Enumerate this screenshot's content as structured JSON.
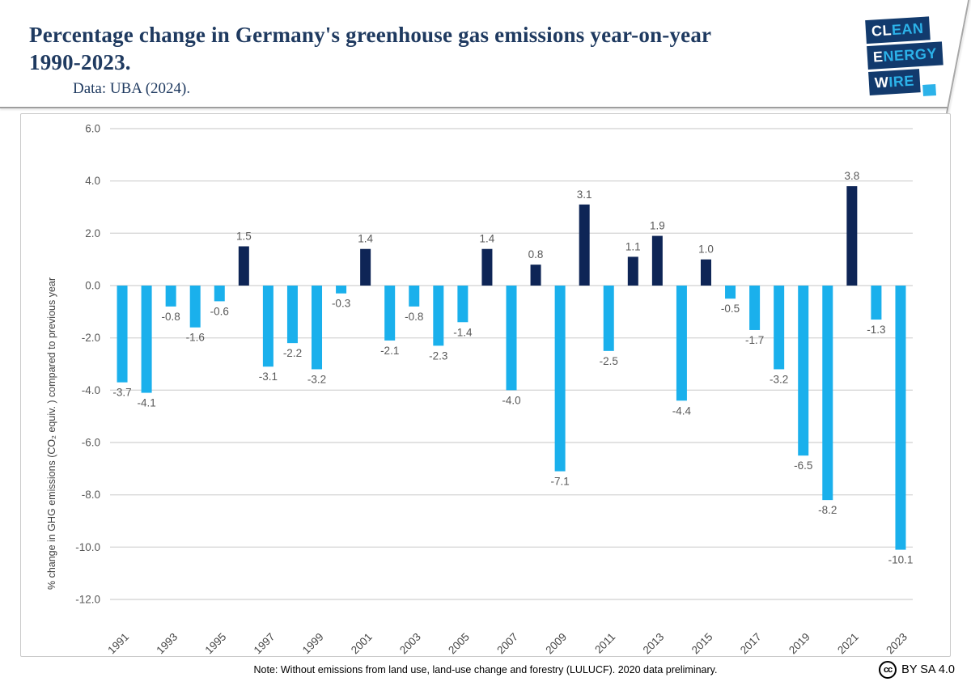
{
  "header": {
    "title_line1": "Percentage change in Germany's greenhouse gas emissions year-on-year",
    "title_line2": "1990-2023.",
    "subtitle": "Data: UBA (2024).",
    "logo": {
      "row1_white": "CL",
      "row1_blue": "EAN",
      "row2_white": "E",
      "row2_blue": "NERGY",
      "row3_white": "W",
      "row3_blue": "IRE"
    }
  },
  "footer": {
    "note": "Note: Without emissions from land use, land-use change and forestry (LULUCF). 2020 data preliminary.",
    "cc_icon": "cc",
    "license": "BY SA 4.0"
  },
  "colors": {
    "title_navy": "#1f3a60",
    "logo_box": "#123a6d",
    "logo_cyan": "#2cb2e9",
    "bar_positive": "#0e2556",
    "bar_negative": "#1ab0ec",
    "gridline": "#d9d9d9",
    "tick_label": "#595959",
    "value_label": "#595959",
    "axis_title": "#3f3f3f"
  },
  "chart_data": {
    "type": "bar",
    "title": "Percentage change in Germany's greenhouse gas emissions year-on-year 1990-2023.",
    "xlabel": "",
    "ylabel": "% change in GHG emissions (CO₂ equiv. ) compared to previous year",
    "x": [
      1991,
      1992,
      1993,
      1994,
      1995,
      1996,
      1997,
      1998,
      1999,
      2000,
      2001,
      2002,
      2003,
      2004,
      2005,
      2006,
      2007,
      2008,
      2009,
      2010,
      2011,
      2012,
      2013,
      2014,
      2015,
      2016,
      2017,
      2018,
      2019,
      2020,
      2021,
      2022,
      2023
    ],
    "values": [
      -3.7,
      -4.1,
      -0.8,
      -1.6,
      -0.6,
      1.5,
      -3.1,
      -2.2,
      -3.2,
      -0.3,
      1.4,
      -2.1,
      -0.8,
      -2.3,
      -1.4,
      1.4,
      -4.0,
      0.8,
      -7.1,
      3.1,
      -2.5,
      1.1,
      1.9,
      -4.4,
      1.0,
      -0.5,
      -1.7,
      -3.2,
      -6.5,
      -8.2,
      3.8,
      -1.3,
      -10.1
    ],
    "xtick_labels": [
      "1991",
      "1993",
      "1995",
      "1997",
      "1999",
      "2001",
      "2003",
      "2005",
      "2007",
      "2009",
      "2011",
      "2013",
      "2015",
      "2017",
      "2019",
      "2021",
      "2023"
    ],
    "yticks": [
      "6.0",
      "4.0",
      "2.0",
      "0.0",
      "-2.0",
      "-4.0",
      "-6.0",
      "-8.0",
      "-10.0",
      "-12.0"
    ],
    "ylim": [
      -12.0,
      6.0
    ],
    "ytick_step": 2.0,
    "grid": true,
    "legend": "none"
  }
}
